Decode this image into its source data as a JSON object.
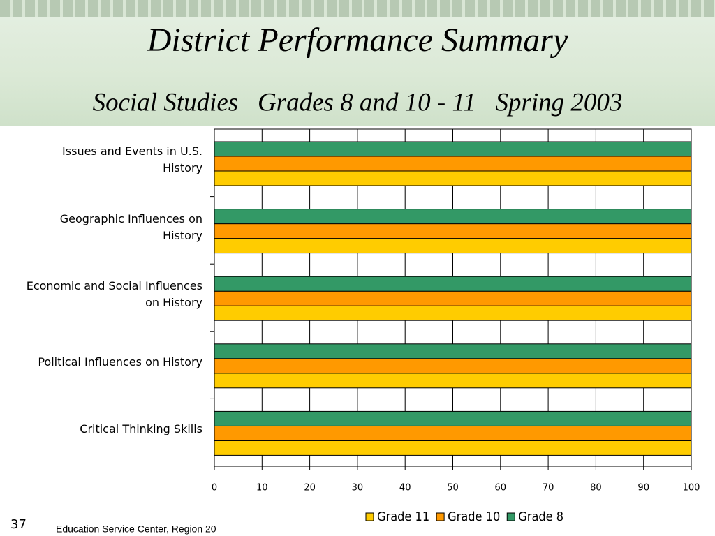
{
  "title": "District Performance Summary",
  "subtitle": "Social Studies   Grades 8 and 10 - 11   Spring 2003",
  "chart_data": {
    "type": "hbar",
    "categories": [
      "Issues and Events in U.S.\nHistory",
      "Geographic Influences on\nHistory",
      "Economic and Social Influences\non History",
      "Political Influences on History",
      "Critical Thinking Skills"
    ],
    "series": [
      {
        "name": "Grade 11",
        "color": "#ffcc00",
        "values": [
          100,
          100,
          100,
          100,
          100
        ]
      },
      {
        "name": "Grade 10",
        "color": "#ff9900",
        "values": [
          100,
          100,
          100,
          100,
          100
        ]
      },
      {
        "name": "Grade 8",
        "color": "#339966",
        "values": [
          100,
          100,
          100,
          100,
          100
        ]
      }
    ],
    "xlim": [
      0,
      100
    ],
    "xticks": [
      0,
      10,
      20,
      30,
      40,
      50,
      60,
      70,
      80,
      90,
      100
    ],
    "grid": true,
    "legend": "bottom"
  },
  "footer": {
    "page": "37",
    "org": "Education Service Center, Region 20"
  }
}
